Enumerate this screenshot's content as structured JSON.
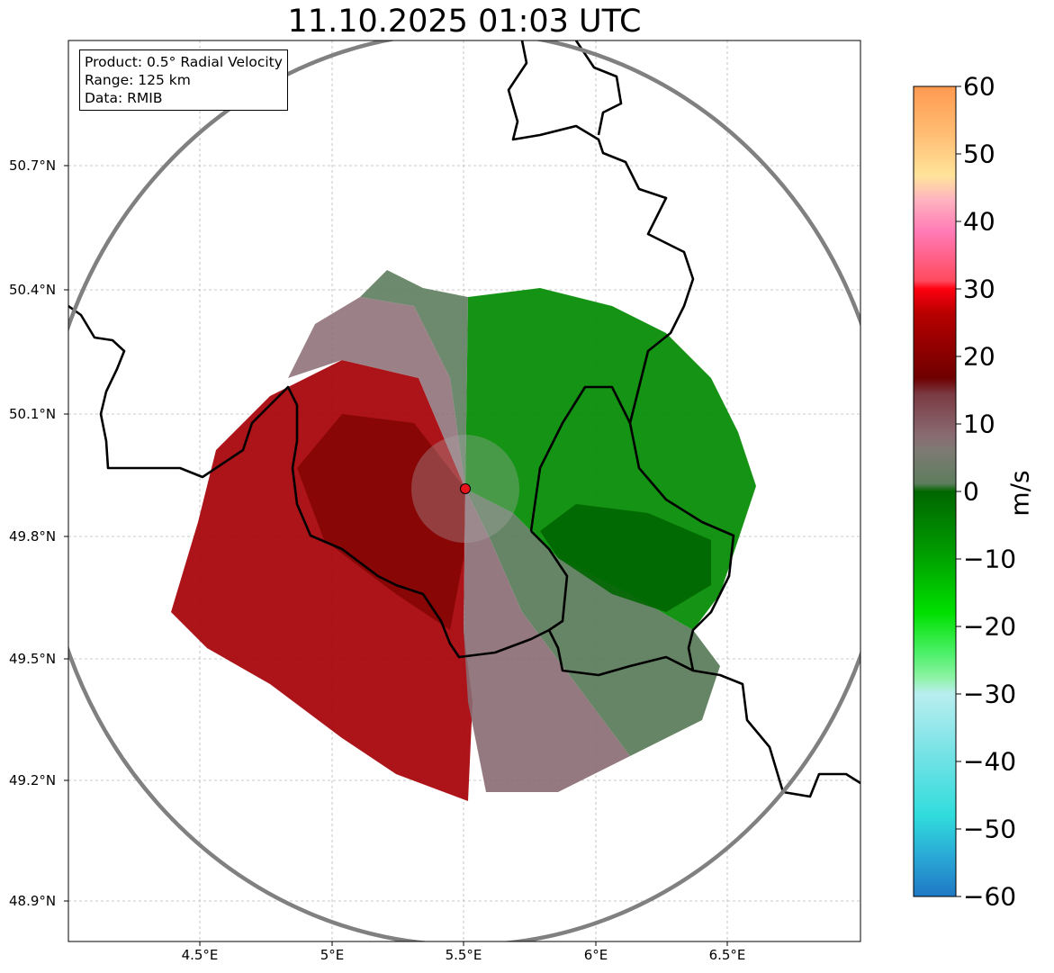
{
  "title": "11.10.2025 01:03 UTC",
  "info": {
    "product": "Product: 0.5° Radial Velocity",
    "range": "Range: 125 km",
    "data": "Data: RMIB"
  },
  "lat_labels": [
    "50.7°N",
    "50.4°N",
    "50.1°N",
    "49.8°N",
    "49.5°N",
    "49.2°N",
    "48.9°N"
  ],
  "lon_labels": [
    "4.5°E",
    "5°E",
    "5.5°E",
    "6°E",
    "6.5°E"
  ],
  "colorbar": {
    "label": "m/s",
    "ticks": [
      "60",
      "50",
      "40",
      "30",
      "20",
      "10",
      "0",
      "−10",
      "−20",
      "−30",
      "−40",
      "−50",
      "−60"
    ],
    "min": -60,
    "max": 60
  },
  "colors": {
    "inbound_strong": "#007a00",
    "inbound_weak": "#5e7d5e",
    "outbound_weak": "#8a6a72",
    "outbound_strong": "#a50005",
    "range_ring": "#808080",
    "radar_site": "#e8141b",
    "border": "#000000"
  }
}
